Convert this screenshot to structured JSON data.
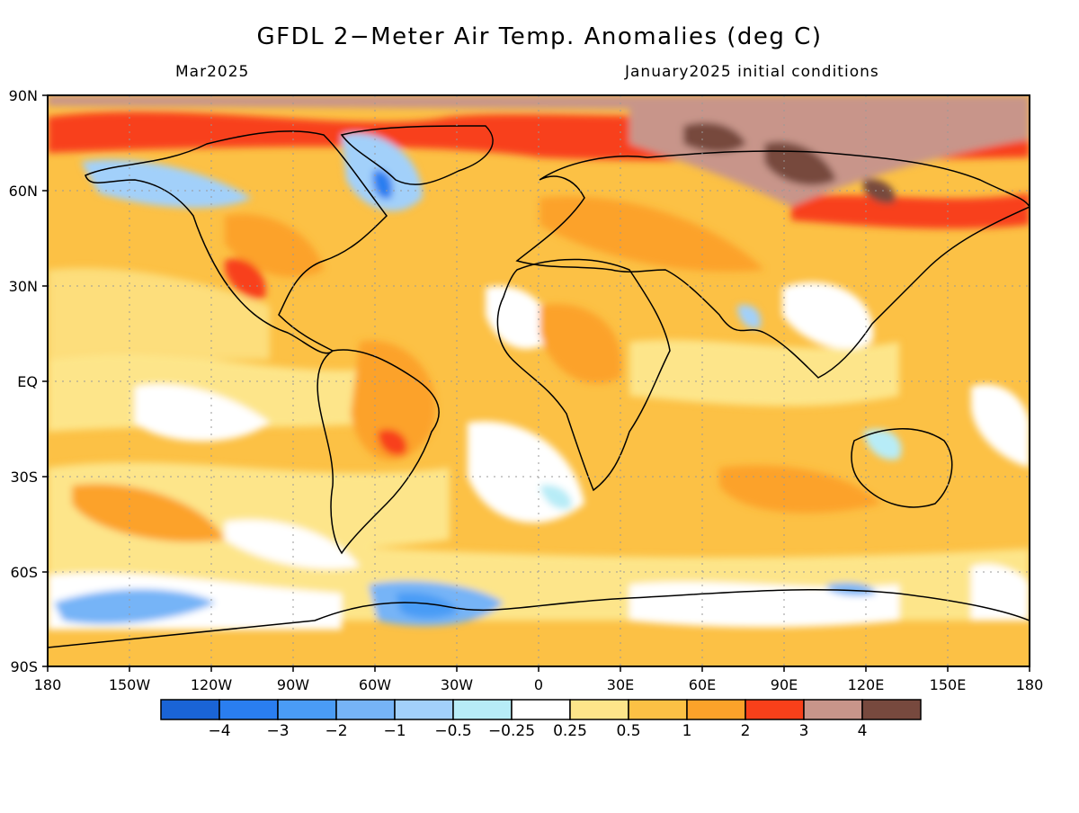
{
  "title": "GFDL 2−Meter Air Temp. Anomalies (deg C)",
  "subtitle_left": "Mar2025",
  "subtitle_right": "January2025 initial conditions",
  "map": {
    "lat_labels": [
      "90N",
      "60N",
      "30N",
      "EQ",
      "30S",
      "60S",
      "90S"
    ],
    "lon_labels": [
      "180",
      "150W",
      "120W",
      "90W",
      "60W",
      "30W",
      "0",
      "30E",
      "60E",
      "90E",
      "120E",
      "150E",
      "180"
    ],
    "grid": true
  },
  "colorbar": {
    "colors": [
      "#1a64d6",
      "#2a7ef0",
      "#4a9cf6",
      "#76b4f7",
      "#a2d0fa",
      "#b7ecf7",
      "#ffffff",
      "#fde58a",
      "#fcc145",
      "#fca22a",
      "#f8401a",
      "#c8958a",
      "#77493e"
    ],
    "labels": [
      "−4",
      "−3",
      "−2",
      "−1",
      "−0.5",
      "−0.25",
      "0.25",
      "0.5",
      "1",
      "2",
      "3",
      "4"
    ]
  }
}
